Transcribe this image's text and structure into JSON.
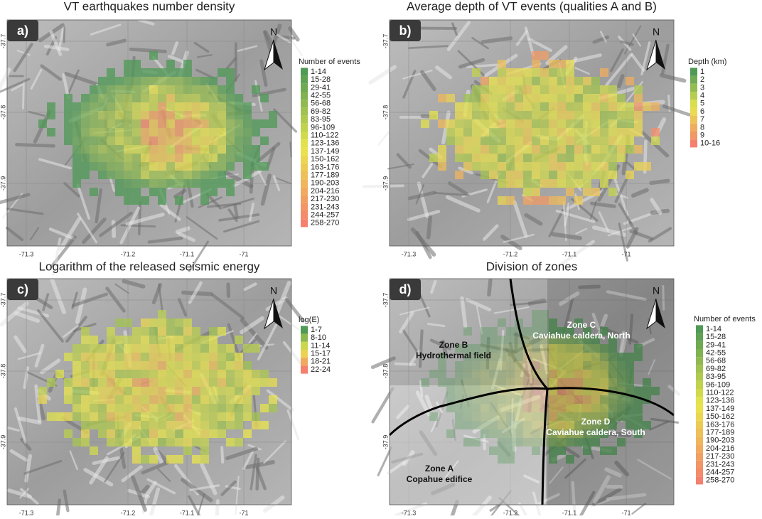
{
  "panels": [
    {
      "letter": "a)",
      "title": "VT earthquakes number density",
      "legend": {
        "title": "Number of events",
        "items": [
          "1-14",
          "15-28",
          "29-41",
          "42-55",
          "56-68",
          "69-82",
          "83-95",
          "96-109",
          "110-122",
          "123-136",
          "137-149",
          "150-162",
          "163-176",
          "177-189",
          "190-203",
          "204-216",
          "217-230",
          "231-243",
          "244-257",
          "258-270"
        ]
      },
      "xticks": [
        "-71.3",
        "-71.2",
        "-71.1",
        "-71"
      ],
      "yticks": [
        "-37.7",
        "-37.8",
        "-37.9"
      ],
      "north": "N"
    },
    {
      "letter": "b)",
      "title": "Average depth of VT events (qualities A and B)",
      "legend": {
        "title": "Depth (km)",
        "items": [
          "1",
          "2",
          "3",
          "4",
          "5",
          "6",
          "7",
          "8",
          "9",
          "10-16"
        ]
      },
      "xticks": [
        "-71.3",
        "-71.2",
        "-71.1",
        "-71"
      ],
      "yticks": [
        "-37.7",
        "-37.8",
        "-37.9"
      ],
      "north": "N"
    },
    {
      "letter": "c)",
      "title": "Logarithm of the released seismic energy",
      "legend": {
        "title": "log(E)",
        "items": [
          "1-7",
          "8-10",
          "11-14",
          "15-17",
          "18-21",
          "22-24"
        ]
      },
      "xticks": [
        "-71.3",
        "-71.2",
        "-71.1",
        "-71"
      ],
      "yticks": [
        "-37.7",
        "-37.8",
        "-37.9"
      ],
      "north": "N"
    },
    {
      "letter": "d)",
      "title": "Division of zones",
      "legend": {
        "title": "Number of events",
        "items": [
          "1-14",
          "15-28",
          "29-41",
          "42-55",
          "56-68",
          "69-82",
          "83-95",
          "96-109",
          "110-122",
          "123-136",
          "137-149",
          "150-162",
          "163-176",
          "177-189",
          "190-203",
          "204-216",
          "217-230",
          "231-243",
          "244-257",
          "258-270"
        ]
      },
      "xticks": [
        "-71.3",
        "-71.2",
        "-71.1",
        "-71"
      ],
      "yticks": [
        "-37.7",
        "-37.8",
        "-37.9"
      ],
      "north": "N",
      "zones": [
        {
          "name": "Zone B",
          "desc": "Hydrothermal field"
        },
        {
          "name": "Zone C",
          "desc": "Caviahue caldera, North"
        },
        {
          "name": "Zone D",
          "desc": "Caviahue caldera, South"
        },
        {
          "name": "Zone A",
          "desc": "Copahue edifice"
        }
      ]
    }
  ],
  "ramp": [
    "#4f9a55",
    "#e9e64c",
    "#f5806e"
  ]
}
